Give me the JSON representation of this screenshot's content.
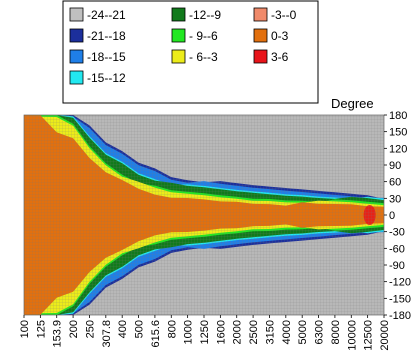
{
  "chart_data": {
    "type": "heatmap",
    "title": "",
    "xlabel": "",
    "ylabel": "Degree",
    "x_tick_labels": [
      "100",
      "125",
      "153.9",
      "200",
      "250",
      "307.8",
      "400",
      "500",
      "615.6",
      "800",
      "1000",
      "1250",
      "1600",
      "2000",
      "2500",
      "3150",
      "4000",
      "5000",
      "6300",
      "8000",
      "10000",
      "12500",
      "20000"
    ],
    "y_tick_labels": [
      "180",
      "150",
      "120",
      "90",
      "60",
      "30",
      "0",
      "-30",
      "-60",
      "-90",
      "-120",
      "-150",
      "-180"
    ],
    "y_ticks": [
      180,
      150,
      120,
      90,
      60,
      30,
      0,
      -30,
      -60,
      -90,
      -120,
      -150,
      -180
    ],
    "ylim": [
      -180,
      180
    ],
    "legend": {
      "placement": "top-left",
      "entries": [
        {
          "label": "-24--21",
          "color": "#c0c0c0"
        },
        {
          "label": "-21--18",
          "color": "#1c2f9c"
        },
        {
          "label": "-18--15",
          "color": "#1f7fe8"
        },
        {
          "label": "-15--12",
          "color": "#22e8f0"
        },
        {
          "label": "-12--9",
          "color": "#117a1c"
        },
        {
          "label": "- 9--6",
          "color": "#22e822"
        },
        {
          "label": "- 6--3",
          "color": "#ecec1a"
        },
        {
          "label": "-3--0",
          "color": "#f08a6a"
        },
        {
          "label": "0-3",
          "color": "#e2700e"
        },
        {
          "label": "3-6",
          "color": "#e8141a"
        }
      ]
    },
    "contour_boundaries_degrees": {
      "note": "upper-half absolute angle where each level band ends, per x tick (approximate, symmetric about 0)",
      "x": [
        "100",
        "125",
        "153.9",
        "200",
        "250",
        "307.8",
        "400",
        "500",
        "615.6",
        "800",
        "1000",
        "1250",
        "1600",
        "2000",
        "2500",
        "3150",
        "4000",
        "5000",
        "6300",
        "8000",
        "10000",
        "12500",
        "20000"
      ],
      "orange_0_3": [
        180,
        180,
        150,
        140,
        105,
        80,
        60,
        45,
        35,
        30,
        30,
        28,
        25,
        25,
        22,
        22,
        20,
        20,
        18,
        18,
        18,
        15,
        15
      ],
      "green_light": [
        180,
        180,
        180,
        165,
        125,
        95,
        75,
        60,
        50,
        42,
        40,
        38,
        35,
        33,
        30,
        30,
        28,
        28,
        26,
        25,
        24,
        22,
        20
      ],
      "green_dark": [
        180,
        180,
        180,
        175,
        140,
        110,
        95,
        75,
        65,
        55,
        50,
        48,
        45,
        42,
        40,
        38,
        36,
        35,
        33,
        32,
        30,
        28,
        25
      ],
      "blue": [
        180,
        180,
        180,
        180,
        160,
        130,
        115,
        95,
        85,
        70,
        65,
        62,
        58,
        55,
        52,
        50,
        48,
        46,
        44,
        42,
        40,
        38,
        32
      ]
    }
  }
}
